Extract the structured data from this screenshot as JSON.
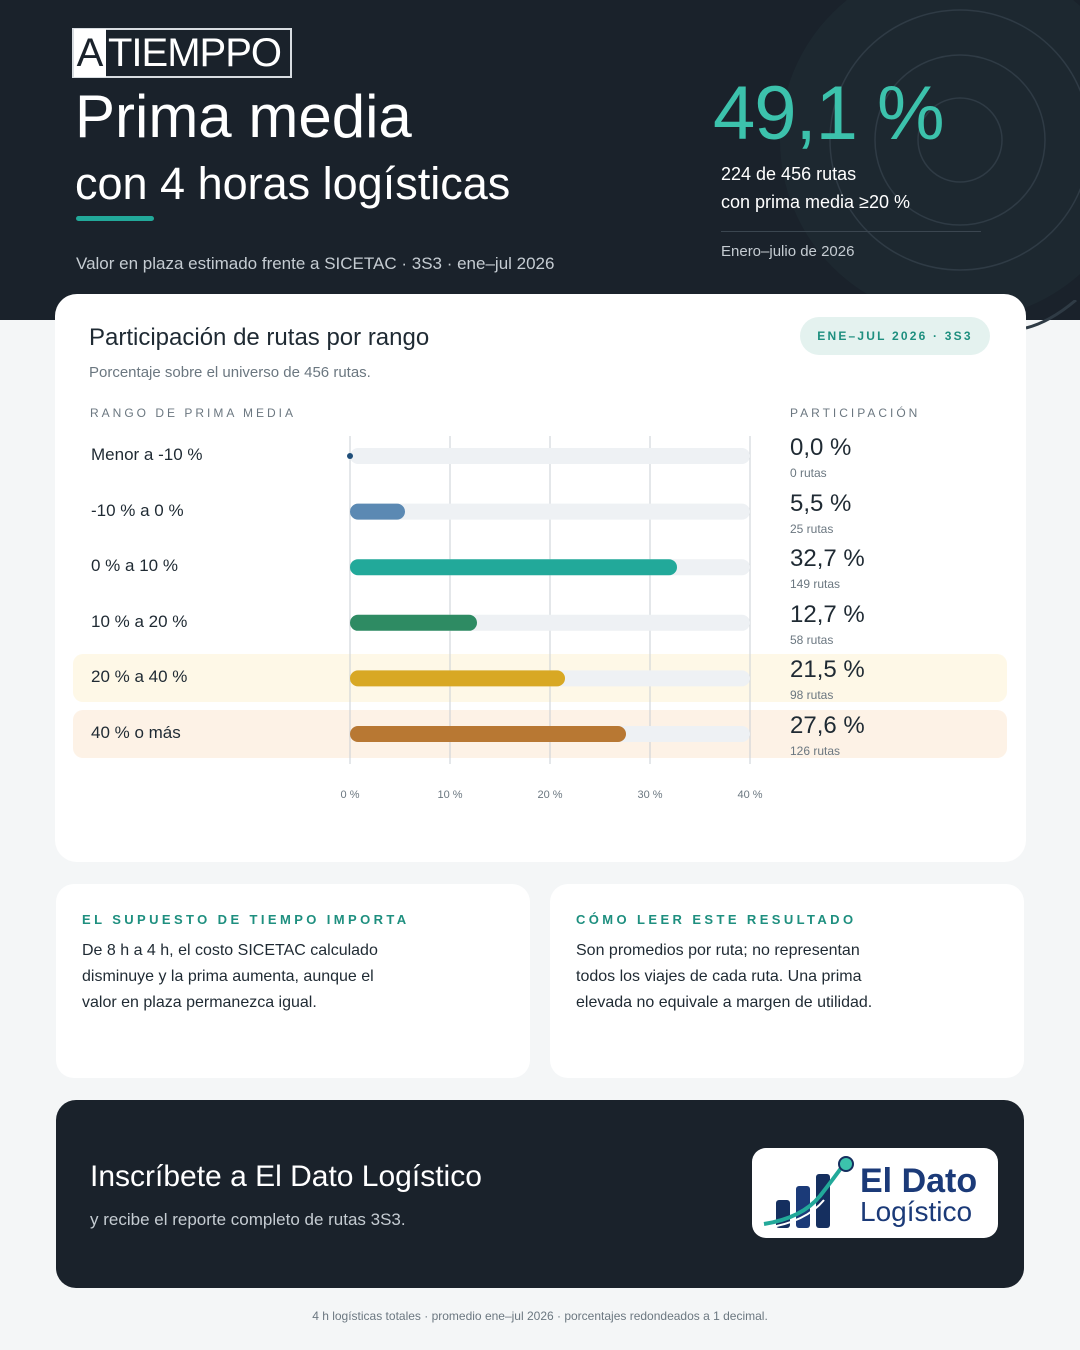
{
  "header": {
    "logo_letter": "A",
    "logo_rest": "TIEMPPO",
    "title": "Prima media",
    "subtitle": "con 4 horas logísticas",
    "meta": "Valor en plaza estimado frente a SICETAC · 3S3 · ene–jul 2026"
  },
  "kpi": {
    "value": "49,1 %",
    "line1": "224 de 456 rutas",
    "line2": "con prima media ≥20 %",
    "period": "Enero–julio de 2026"
  },
  "card": {
    "title": "Participación de rutas por rango",
    "subtitle": "Porcentaje sobre el universo de 456 rutas.",
    "pill": "ENE–JUL 2026 · 3S3",
    "col_left": "RANGO DE PRIMA MEDIA",
    "col_right": "PARTICIPACIÓN"
  },
  "chart_data": {
    "type": "bar",
    "orientation": "horizontal",
    "categories": [
      "Menor a -10 %",
      "-10 % a 0 %",
      "0 % a 10 %",
      "10 % a 20 %",
      "20 % a 40 %",
      "40 % o más"
    ],
    "values": [
      0.0,
      5.5,
      32.7,
      12.7,
      21.5,
      27.6
    ],
    "labels": [
      "0,0 %",
      "5,5 %",
      "32,7 %",
      "12,7 %",
      "21,5 %",
      "27,6 %"
    ],
    "counts": [
      "0 rutas",
      "25 rutas",
      "149 rutas",
      "58 rutas",
      "98 rutas",
      "126 rutas"
    ],
    "colors": [
      "#1f4e79",
      "#5b89b3",
      "#22a99a",
      "#2e8b63",
      "#d8a824",
      "#b87833"
    ],
    "highlighted": [
      false,
      false,
      false,
      false,
      true,
      true
    ],
    "highlight_colors": [
      "#fef8e7",
      "#fdf2e6"
    ],
    "xlim": [
      0,
      40
    ],
    "xticks": [
      0,
      10,
      20,
      30,
      40
    ],
    "xtick_labels": [
      "0 %",
      "10 %",
      "20 %",
      "30 %",
      "40 %"
    ],
    "grid": true
  },
  "info_left": {
    "heading": "EL SUPUESTO DE TIEMPO IMPORTA",
    "body": "De 8 h a 4 h, el costo SICETAC calculado disminuye y la prima aumenta, aunque el valor en plaza permanezca igual."
  },
  "info_right": {
    "heading": "CÓMO LEER ESTE RESULTADO",
    "body": "Son promedios por ruta; no representan todos los viajes de cada ruta. Una prima elevada no equivale a margen de utilidad."
  },
  "cta": {
    "title": "Inscríbete a El Dato Logístico",
    "subtitle": "y recibe el reporte completo de rutas 3S3.",
    "brand_line1": "El Dato",
    "brand_line2": "Logístico"
  },
  "footer": "4 h logísticas totales · promedio ene–jul 2026 · porcentajes redondeados a 1 decimal.",
  "colors": {
    "dark": "#1a222b",
    "accent": "#22a99a",
    "kpi": "#3cc2ac",
    "track": "#eef1f4"
  }
}
